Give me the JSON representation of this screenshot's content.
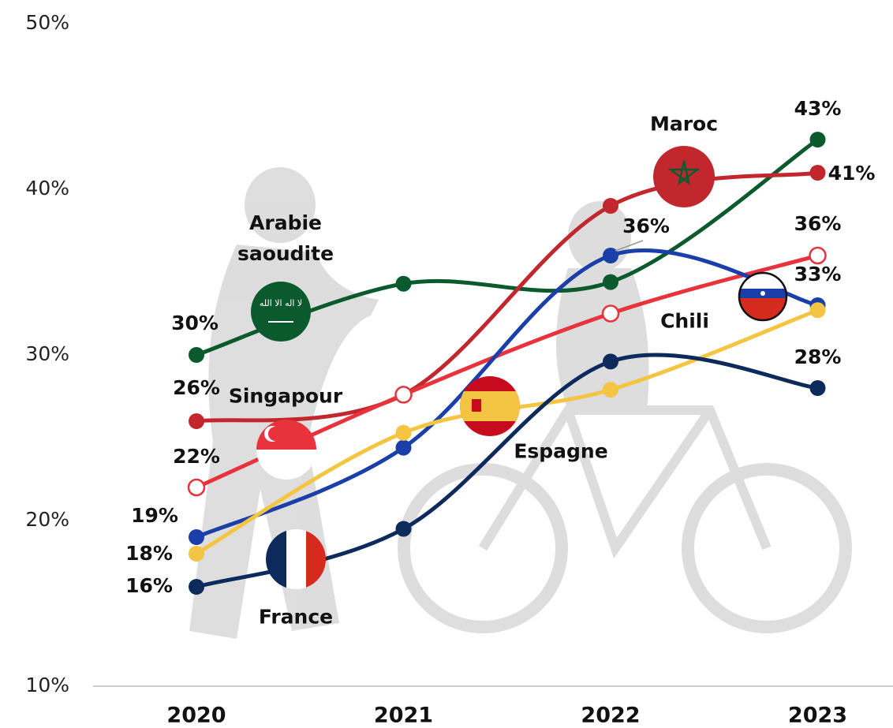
{
  "chart_data": {
    "type": "line",
    "categories": [
      "2020",
      "2021",
      "2022",
      "2023"
    ],
    "ylim": [
      10,
      50
    ],
    "yticks": [
      {
        "value": 10,
        "label": "10%"
      },
      {
        "value": 20,
        "label": "20%"
      },
      {
        "value": 30,
        "label": "30%"
      },
      {
        "value": 40,
        "label": "40%"
      },
      {
        "value": 50,
        "label": "50%"
      }
    ],
    "series": [
      {
        "name": "Arabie saoudite",
        "color": "#0b5a2e",
        "hollow": false,
        "values": [
          30,
          34.3,
          34.4,
          43
        ],
        "value_labels": [
          "30%",
          null,
          null,
          "43%"
        ]
      },
      {
        "name": "Maroc",
        "color": "#c1272d",
        "hollow": false,
        "values": [
          26,
          27.6,
          39.0,
          41
        ],
        "value_labels": [
          "26%",
          null,
          null,
          "41%"
        ]
      },
      {
        "name": "Singapour",
        "color": "#e8323c",
        "hollow": true,
        "values": [
          22,
          27.6,
          32.5,
          36
        ],
        "value_labels": [
          "22%",
          null,
          null,
          "36%"
        ]
      },
      {
        "name": "Chili",
        "color": "#1a3fa8",
        "hollow": false,
        "values": [
          19,
          24.4,
          36,
          33
        ],
        "value_labels": [
          "19%",
          null,
          "36%",
          "33%"
        ]
      },
      {
        "name": "Espagne",
        "color": "#f4c542",
        "hollow": false,
        "values": [
          18,
          25.3,
          27.9,
          32.7
        ],
        "value_labels": [
          "18%",
          null,
          null,
          null
        ]
      },
      {
        "name": "France",
        "color": "#0d2a5c",
        "hollow": false,
        "values": [
          16,
          19.5,
          29.6,
          28
        ],
        "value_labels": [
          "16%",
          null,
          null,
          "28%"
        ]
      }
    ]
  }
}
